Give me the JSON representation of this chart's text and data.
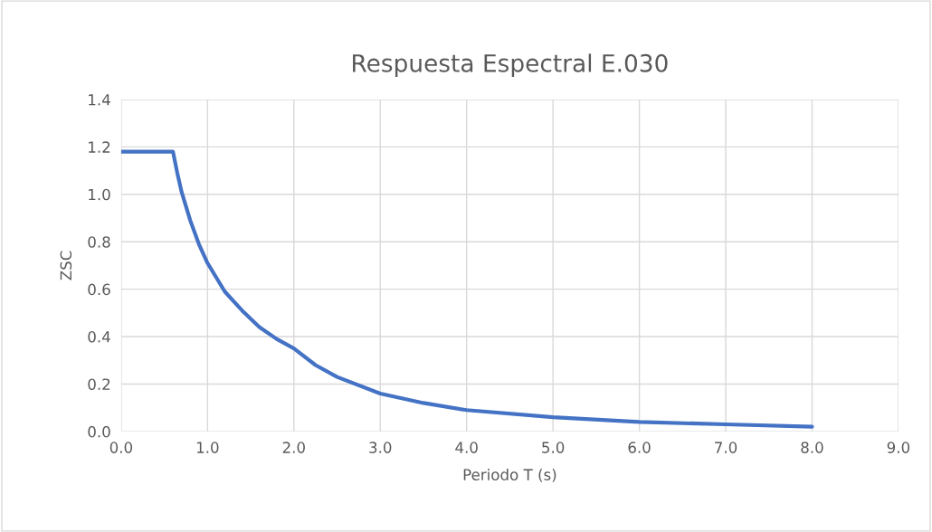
{
  "chart_data": {
    "type": "line",
    "title": "Respuesta Espectral E.030",
    "xlabel": "Periodo T (s)",
    "ylabel": "ZSC",
    "x": [
      0,
      0.6,
      0.65,
      0.7,
      0.8,
      0.9,
      1.0,
      1.2,
      1.4,
      1.6,
      1.8,
      2.0,
      2.25,
      2.5,
      3.0,
      3.5,
      4.0,
      5.0,
      6.0,
      7.0,
      8.0
    ],
    "series": [
      {
        "color": "#4472c4",
        "values": [
          1.18,
          1.18,
          1.09,
          1.01,
          0.89,
          0.79,
          0.71,
          0.59,
          0.51,
          0.44,
          0.39,
          0.35,
          0.28,
          0.23,
          0.16,
          0.12,
          0.09,
          0.06,
          0.04,
          0.03,
          0.02
        ]
      }
    ],
    "xlim": [
      0,
      9
    ],
    "xticks": [
      {
        "value": 0,
        "label": "0.0"
      },
      {
        "value": 1,
        "label": "1.0"
      },
      {
        "value": 2,
        "label": "2.0"
      },
      {
        "value": 3,
        "label": "3.0"
      },
      {
        "value": 4,
        "label": "4.0"
      },
      {
        "value": 5,
        "label": "5.0"
      },
      {
        "value": 6,
        "label": "6.0"
      },
      {
        "value": 7,
        "label": "7.0"
      },
      {
        "value": 8,
        "label": "8.0"
      },
      {
        "value": 9,
        "label": "9.0"
      }
    ],
    "ylim": [
      0,
      1.4
    ],
    "yticks": [
      {
        "value": 0,
        "label": "0.0"
      },
      {
        "value": 0.2,
        "label": "0.2"
      },
      {
        "value": 0.4,
        "label": "0.4"
      },
      {
        "value": 0.6,
        "label": "0.6"
      },
      {
        "value": 0.8,
        "label": "0.8"
      },
      {
        "value": 1.0,
        "label": "1.0"
      },
      {
        "value": 1.2,
        "label": "1.2"
      },
      {
        "value": 1.4,
        "label": "1.4"
      }
    ],
    "grid": true,
    "marker": "none",
    "line_style": "solid"
  }
}
